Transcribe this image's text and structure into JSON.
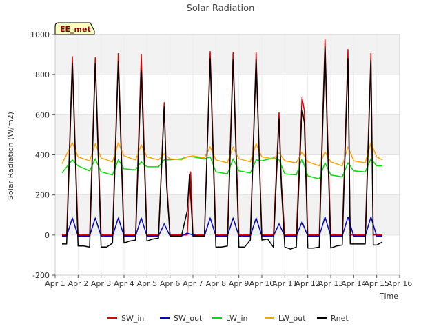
{
  "chart_data": {
    "type": "line",
    "title": "Solar Radiation",
    "xlabel": "Time",
    "ylabel": "Solar Radiation (W/m2)",
    "annotation": "EE_met",
    "xlim": [
      1,
      16
    ],
    "ylim": [
      -200,
      1000
    ],
    "x_ticks": [
      {
        "value": 1,
        "label": "Apr 1"
      },
      {
        "value": 2,
        "label": "Apr 2"
      },
      {
        "value": 3,
        "label": "Apr 3"
      },
      {
        "value": 4,
        "label": "Apr 4"
      },
      {
        "value": 5,
        "label": "Apr 5"
      },
      {
        "value": 6,
        "label": "Apr 6"
      },
      {
        "value": 7,
        "label": "Apr 7"
      },
      {
        "value": 8,
        "label": "Apr 8"
      },
      {
        "value": 9,
        "label": "Apr 9"
      },
      {
        "value": 10,
        "label": "Apr 10"
      },
      {
        "value": 11,
        "label": "Apr 11"
      },
      {
        "value": 12,
        "label": "Apr 12"
      },
      {
        "value": 13,
        "label": "Apr 13"
      },
      {
        "value": 14,
        "label": "Apr 14"
      },
      {
        "value": 15,
        "label": "Apr 15"
      },
      {
        "value": 16,
        "label": "Apr 16"
      }
    ],
    "y_ticks": [
      -200,
      0,
      200,
      400,
      600,
      800,
      1000
    ],
    "grid": true,
    "legend_position": "bottom",
    "series": [
      {
        "name": "SW_in",
        "color": "#e00000",
        "x": [
          1.3,
          1.5,
          1.75,
          2.0,
          2.25,
          2.5,
          2.75,
          3.0,
          3.25,
          3.5,
          3.75,
          4.0,
          4.25,
          4.5,
          4.75,
          5.0,
          5.25,
          5.5,
          5.75,
          5.85,
          6.0,
          6.25,
          6.5,
          6.75,
          6.9,
          7.0,
          7.25,
          7.5,
          7.75,
          8.0,
          8.25,
          8.5,
          8.75,
          9.0,
          9.25,
          9.5,
          9.75,
          10.0,
          10.25,
          10.5,
          10.75,
          10.85,
          11.0,
          11.25,
          11.5,
          11.75,
          11.85,
          12.0,
          12.25,
          12.5,
          12.75,
          12.85,
          13.0,
          13.25,
          13.5,
          13.75,
          13.85,
          14.0,
          14.25,
          14.5,
          14.75,
          14.85,
          15.0,
          15.25
        ],
        "y": [
          0,
          0,
          890,
          0,
          0,
          0,
          885,
          0,
          0,
          0,
          905,
          0,
          0,
          0,
          900,
          0,
          0,
          0,
          660,
          280,
          0,
          0,
          0,
          0,
          315,
          0,
          0,
          0,
          915,
          0,
          0,
          0,
          910,
          0,
          0,
          0,
          910,
          0,
          0,
          0,
          610,
          270,
          0,
          0,
          0,
          685,
          620,
          0,
          0,
          0,
          975,
          560,
          0,
          0,
          0,
          925,
          0,
          0,
          0,
          0,
          905,
          0,
          0,
          0
        ]
      },
      {
        "name": "SW_out",
        "color": "#0000cc",
        "x": [
          1.3,
          1.5,
          1.75,
          2.0,
          2.25,
          2.5,
          2.75,
          3.0,
          3.25,
          3.5,
          3.75,
          4.0,
          4.25,
          4.5,
          4.75,
          5.0,
          5.25,
          5.5,
          5.75,
          6.0,
          6.25,
          6.5,
          6.75,
          7.0,
          7.25,
          7.5,
          7.75,
          8.0,
          8.25,
          8.5,
          8.75,
          9.0,
          9.25,
          9.5,
          9.75,
          10.0,
          10.25,
          10.5,
          10.75,
          11.0,
          11.25,
          11.5,
          11.75,
          12.0,
          12.25,
          12.5,
          12.75,
          13.0,
          13.25,
          13.5,
          13.75,
          14.0,
          14.25,
          14.5,
          14.75,
          15.0,
          15.25
        ],
        "y": [
          -5,
          -5,
          85,
          -5,
          -5,
          -5,
          85,
          -5,
          -5,
          -5,
          85,
          -5,
          -5,
          -5,
          85,
          -5,
          -5,
          -5,
          55,
          -5,
          -5,
          -5,
          10,
          0,
          -5,
          -5,
          85,
          -5,
          -5,
          -5,
          85,
          -5,
          -5,
          -5,
          85,
          -5,
          -5,
          -5,
          55,
          -5,
          -5,
          -5,
          65,
          -5,
          -5,
          -5,
          90,
          -5,
          -5,
          -5,
          90,
          -5,
          -5,
          -5,
          90,
          -5,
          -5
        ]
      },
      {
        "name": "LW_in",
        "color": "#00dd00",
        "x": [
          1.3,
          1.75,
          2.0,
          2.5,
          2.75,
          3.0,
          3.5,
          3.75,
          4.0,
          4.5,
          4.75,
          5.0,
          5.5,
          5.75,
          6.0,
          6.5,
          6.75,
          7.0,
          7.5,
          7.75,
          8.0,
          8.5,
          8.75,
          9.0,
          9.5,
          9.75,
          10.0,
          10.5,
          10.75,
          11.0,
          11.5,
          11.75,
          12.0,
          12.5,
          12.75,
          13.0,
          13.5,
          13.75,
          14.0,
          14.5,
          14.75,
          15.0,
          15.25
        ],
        "y": [
          310,
          375,
          345,
          320,
          380,
          315,
          300,
          375,
          330,
          325,
          365,
          340,
          340,
          375,
          375,
          380,
          390,
          390,
          380,
          390,
          315,
          305,
          380,
          320,
          310,
          375,
          370,
          385,
          375,
          305,
          300,
          380,
          295,
          280,
          360,
          300,
          290,
          360,
          320,
          315,
          380,
          345,
          345
        ]
      },
      {
        "name": "LW_out",
        "color": "#ffa500",
        "x": [
          1.3,
          1.75,
          2.0,
          2.5,
          2.75,
          3.0,
          3.5,
          3.75,
          4.0,
          4.5,
          4.75,
          5.0,
          5.5,
          5.75,
          6.0,
          6.5,
          6.75,
          7.0,
          7.5,
          7.75,
          8.0,
          8.5,
          8.75,
          9.0,
          9.5,
          9.75,
          10.0,
          10.5,
          10.75,
          11.0,
          11.5,
          11.75,
          12.0,
          12.5,
          12.75,
          13.0,
          13.5,
          13.75,
          14.0,
          14.5,
          14.75,
          15.0,
          15.25
        ],
        "y": [
          355,
          460,
          390,
          370,
          455,
          385,
          365,
          460,
          395,
          375,
          450,
          390,
          375,
          405,
          380,
          375,
          390,
          395,
          385,
          440,
          375,
          360,
          440,
          380,
          365,
          455,
          390,
          380,
          410,
          370,
          360,
          415,
          365,
          345,
          415,
          365,
          345,
          440,
          370,
          360,
          460,
          390,
          375
        ]
      },
      {
        "name": "Rnet",
        "color": "#000000",
        "x": [
          1.3,
          1.5,
          1.75,
          2.0,
          2.25,
          2.5,
          2.75,
          3.0,
          3.25,
          3.5,
          3.75,
          4.0,
          4.25,
          4.5,
          4.75,
          5.0,
          5.25,
          5.5,
          5.75,
          5.85,
          6.0,
          6.25,
          6.5,
          6.75,
          6.85,
          7.0,
          7.25,
          7.5,
          7.75,
          8.0,
          8.25,
          8.5,
          8.75,
          9.0,
          9.25,
          9.5,
          9.75,
          10.0,
          10.25,
          10.5,
          10.75,
          10.85,
          11.0,
          11.25,
          11.5,
          11.75,
          11.85,
          12.0,
          12.25,
          12.5,
          12.75,
          12.85,
          13.0,
          13.25,
          13.5,
          13.75,
          13.85,
          14.0,
          14.25,
          14.5,
          14.75,
          14.85,
          15.0,
          15.25
        ],
        "y": [
          -45,
          -45,
          855,
          -55,
          -55,
          -60,
          855,
          -60,
          -60,
          -40,
          865,
          -40,
          -30,
          -25,
          820,
          -30,
          -20,
          -15,
          640,
          250,
          -5,
          -5,
          -5,
          120,
          300,
          -5,
          -5,
          -5,
          880,
          -60,
          -60,
          -55,
          875,
          -60,
          -60,
          -25,
          875,
          -25,
          -20,
          -60,
          580,
          240,
          -60,
          -70,
          -60,
          630,
          560,
          -65,
          -65,
          -60,
          940,
          500,
          -65,
          -55,
          -50,
          880,
          -45,
          -45,
          -45,
          -45,
          870,
          -50,
          -50,
          -35
        ]
      }
    ]
  }
}
